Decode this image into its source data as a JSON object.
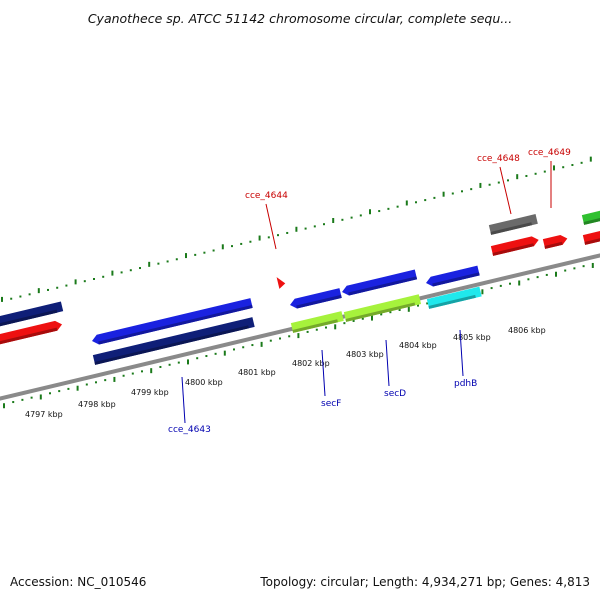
{
  "title": "Cyanothece sp. ATCC 51142 chromosome circular, complete sequ...",
  "footer": {
    "accession": "Accession: NC_010546",
    "summary": "Topology: circular; Length: 4,934,271 bp; Genes: 4,813"
  },
  "colors": {
    "backbone": "#8a8a8a",
    "tick": "#1a7a1a",
    "forward_label": "#c80000",
    "reverse_label": "#0000b0"
  },
  "scale_ticks": {
    "upper": [
      "4806 kbp"
    ],
    "lower": [
      "4797 kbp",
      "4798 kbp",
      "4799 kbp",
      "4800 kbp",
      "4801 kbp",
      "4802 kbp",
      "4803 kbp",
      "4804 kbp",
      "4805 kbp"
    ]
  },
  "features": [
    {
      "label": "",
      "color": "#0f1f78",
      "strand": "reverse"
    },
    {
      "label": "",
      "color": "#ee1111",
      "strand": "forward"
    },
    {
      "label": "",
      "color": "#1a22e0",
      "strand": "reverse"
    },
    {
      "label": "cce_4643",
      "color": "#0f1f78",
      "strand": "reverse"
    },
    {
      "label": "",
      "color": "#1a22e0",
      "strand": "reverse"
    },
    {
      "label": "",
      "color": "#1a22e0",
      "strand": "reverse"
    },
    {
      "label": "",
      "color": "#1a22e0",
      "strand": "reverse"
    },
    {
      "label": "secF",
      "color": "#a6f23c",
      "strand": "reverse"
    },
    {
      "label": "secD",
      "color": "#a6f23c",
      "strand": "reverse"
    },
    {
      "label": "pdhB",
      "color": "#20e8ec",
      "strand": "reverse"
    },
    {
      "label": "cce_4644",
      "color": "#ee1111",
      "strand": "forward"
    },
    {
      "label": "",
      "color": "#6a6a6a",
      "strand": "forward"
    },
    {
      "label": "cce_4648",
      "color": "#ee1111",
      "strand": "forward"
    },
    {
      "label": "cce_4649",
      "color": "#ee1111",
      "strand": "forward"
    },
    {
      "label": "",
      "color": "#30c030",
      "strand": "forward"
    },
    {
      "label": "",
      "color": "#ee1111",
      "strand": "forward"
    }
  ]
}
